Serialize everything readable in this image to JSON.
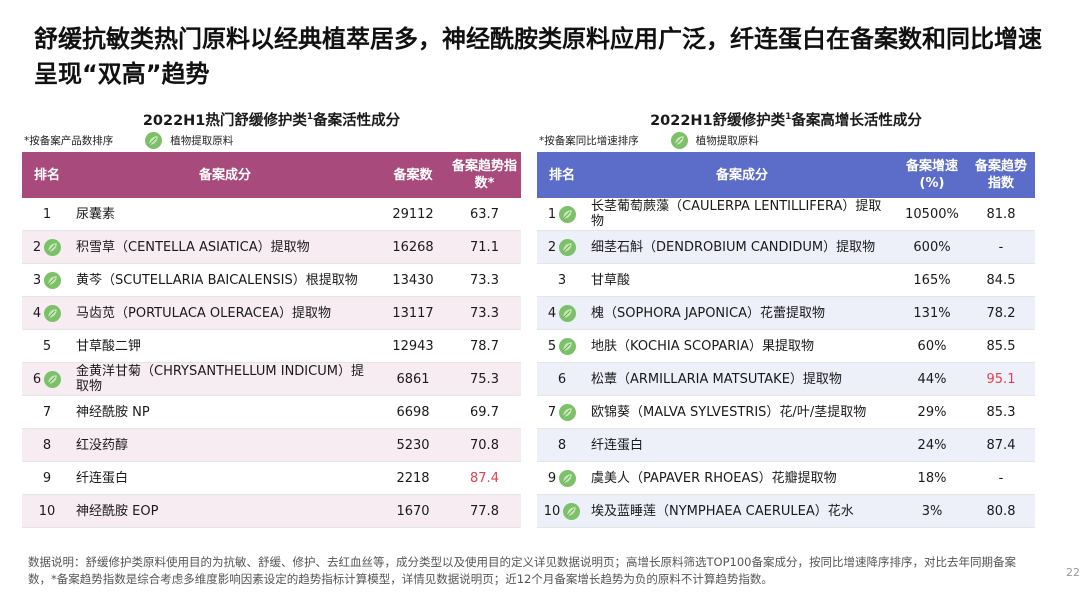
{
  "title": "舒缓抗敏类热门原料以经典植萃居多，神经酰胺类原料应用广泛，纤连蛋白在备案数和同比增速呈现“双高”趋势",
  "left": {
    "title_pre": "2022H1热门舒缓修护类",
    "title_sup": "1",
    "title_post": "备案活性成分",
    "sort_note": "*按备案产品数排序",
    "legend_label": "植物提取原料",
    "headers": {
      "rank": "排名",
      "ingredient": "备案成分",
      "count": "备案数",
      "trend": "备案趋势指数*"
    },
    "rows": [
      {
        "rank": "1",
        "plant": false,
        "name": "尿囊素",
        "count": "29112",
        "trend": "63.7",
        "hl": false
      },
      {
        "rank": "2",
        "plant": true,
        "name": "积雪草（CENTELLA ASIATICA）提取物",
        "count": "16268",
        "trend": "71.1",
        "hl": false
      },
      {
        "rank": "3",
        "plant": true,
        "name": "黄芩（SCUTELLARIA BAICALENSIS）根提取物",
        "count": "13430",
        "trend": "73.3",
        "hl": false
      },
      {
        "rank": "4",
        "plant": true,
        "name": "马齿苋（PORTULACA OLERACEA）提取物",
        "count": "13117",
        "trend": "73.3",
        "hl": false
      },
      {
        "rank": "5",
        "plant": false,
        "name": "甘草酸二钾",
        "count": "12943",
        "trend": "78.7",
        "hl": false
      },
      {
        "rank": "6",
        "plant": true,
        "name": "金黄洋甘菊（CHRYSANTHELLUM INDICUM）提取物",
        "count": "6861",
        "trend": "75.3",
        "hl": false
      },
      {
        "rank": "7",
        "plant": false,
        "name": "神经酰胺 NP",
        "count": "6698",
        "trend": "69.7",
        "hl": false
      },
      {
        "rank": "8",
        "plant": false,
        "name": "红没药醇",
        "count": "5230",
        "trend": "70.8",
        "hl": false
      },
      {
        "rank": "9",
        "plant": false,
        "name": "纤连蛋白",
        "count": "2218",
        "trend": "87.4",
        "hl": true
      },
      {
        "rank": "10",
        "plant": false,
        "name": "神经酰胺 EOP",
        "count": "1670",
        "trend": "77.8",
        "hl": false
      }
    ]
  },
  "right": {
    "title_pre": "2022H1舒缓修护类",
    "title_sup": "1",
    "title_post": "备案高增长活性成分",
    "sort_note": "*按备案同比增速排序",
    "legend_label": "植物提取原料",
    "headers": {
      "rank": "排名",
      "ingredient": "备案成分",
      "growth": "备案增速(%)",
      "trend": "备案趋势指数"
    },
    "rows": [
      {
        "rank": "1",
        "plant": true,
        "name": "长茎葡萄蕨藻（CAULERPA LENTILLIFERA）提取物",
        "growth": "10500%",
        "trend": "81.8",
        "hl": false
      },
      {
        "rank": "2",
        "plant": true,
        "name": "细茎石斛（DENDROBIUM CANDIDUM）提取物",
        "growth": "600%",
        "trend": "-",
        "hl": false
      },
      {
        "rank": "3",
        "plant": false,
        "name": "甘草酸",
        "growth": "165%",
        "trend": "84.5",
        "hl": false
      },
      {
        "rank": "4",
        "plant": true,
        "name": "槐（SOPHORA JAPONICA）花蕾提取物",
        "growth": "131%",
        "trend": "78.2",
        "hl": false
      },
      {
        "rank": "5",
        "plant": true,
        "name": "地肤（KOCHIA SCOPARIA）果提取物",
        "growth": "60%",
        "trend": "85.5",
        "hl": false
      },
      {
        "rank": "6",
        "plant": false,
        "name": "松蕈（ARMILLARIA MATSUTAKE）提取物",
        "growth": "44%",
        "trend": "95.1",
        "hl": true
      },
      {
        "rank": "7",
        "plant": true,
        "name": "欧锦葵（MALVA SYLVESTRIS）花/叶/茎提取物",
        "growth": "29%",
        "trend": "85.3",
        "hl": false
      },
      {
        "rank": "8",
        "plant": false,
        "name": "纤连蛋白",
        "growth": "24%",
        "trend": "87.4",
        "hl": false
      },
      {
        "rank": "9",
        "plant": true,
        "name": "虞美人（PAPAVER RHOEAS）花瓣提取物",
        "growth": "18%",
        "trend": "-",
        "hl": false
      },
      {
        "rank": "10",
        "plant": true,
        "name": "埃及蓝睡莲（NYMPHAEA CAERULEA）花水",
        "growth": "3%",
        "trend": "80.8",
        "hl": false
      }
    ]
  },
  "footer": "数据说明：舒缓修护类原料使用目的为抗敏、舒缓、修护、去红血丝等，成分类型以及使用目的定义详见数据说明页；高增长原料筛选TOP100备案成分，按同比增速降序排序，对比去年同期备案数，*备案趋势指数是综合考虑多维度影响因素设定的趋势指标计算模型，详情见数据说明页；近12个月备案增长趋势为负的原料不计算趋势指数。",
  "page_number": "22",
  "colors": {
    "left_header": "#a94a7c",
    "right_header": "#5c6dc9",
    "highlight": "#e0404f",
    "leaf": "#7cc06a"
  },
  "icons": {
    "plant": "leaf-icon"
  }
}
